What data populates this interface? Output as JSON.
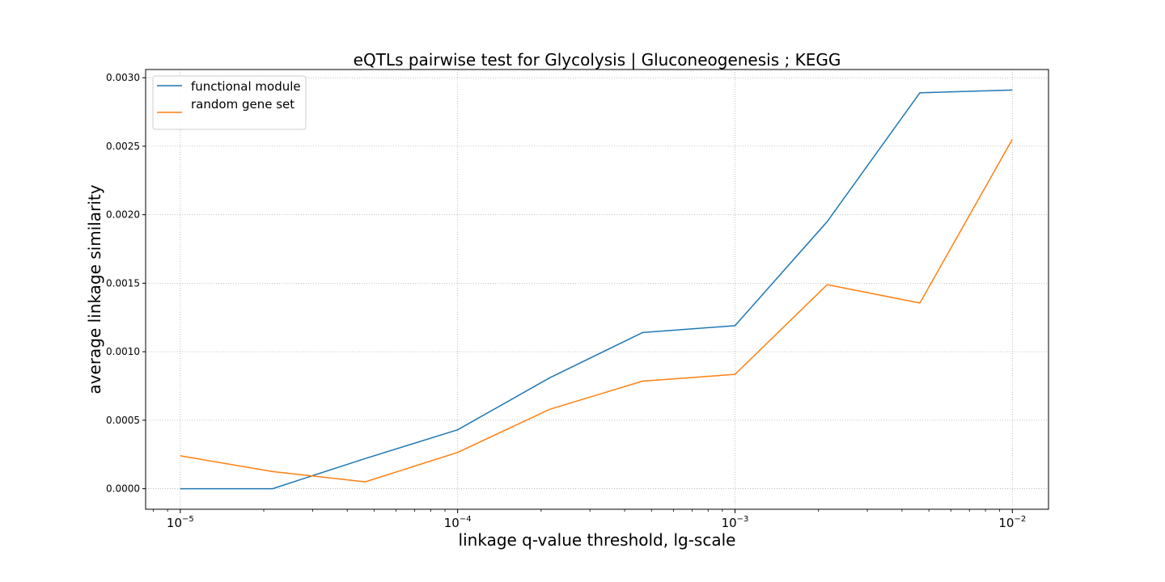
{
  "chart_data": {
    "type": "line",
    "title": "eQTLs pairwise test for Glycolysis | Gluconeogenesis ; KEGG",
    "xlabel": "linkage q-value threshold, lg-scale",
    "ylabel": "average linkage similarity",
    "x_scale": "log",
    "xlim": [
      7.5e-06,
      0.0135
    ],
    "ylim": [
      -0.00015,
      0.00306
    ],
    "x_ticks": [
      {
        "value": 1e-05,
        "base": "10",
        "exp": "−5"
      },
      {
        "value": 0.0001,
        "base": "10",
        "exp": "−4"
      },
      {
        "value": 0.001,
        "base": "10",
        "exp": "−3"
      },
      {
        "value": 0.01,
        "base": "10",
        "exp": "−2"
      }
    ],
    "y_ticks": [
      {
        "value": 0.0,
        "label": "0.0000"
      },
      {
        "value": 0.0005,
        "label": "0.0005"
      },
      {
        "value": 0.001,
        "label": "0.0010"
      },
      {
        "value": 0.0015,
        "label": "0.0015"
      },
      {
        "value": 0.002,
        "label": "0.0020"
      },
      {
        "value": 0.0025,
        "label": "0.0025"
      },
      {
        "value": 0.003,
        "label": "0.0030"
      }
    ],
    "grid": true,
    "legend_position": "upper-left",
    "x": [
      1e-05,
      2.15e-05,
      4.64e-05,
      0.0001,
      0.000215,
      0.000464,
      0.001,
      0.00215,
      0.00464,
      0.01
    ],
    "series": [
      {
        "name": "functional module",
        "color": "#1f77b4",
        "values": [
          0.0,
          0.0,
          0.00022,
          0.00043,
          0.00081,
          0.00114,
          0.00119,
          0.00195,
          0.00289,
          0.00291
        ]
      },
      {
        "name": "random gene set",
        "color": "#ff7f0e",
        "values": [
          0.00024,
          0.000125,
          5e-05,
          0.000265,
          0.00058,
          0.000785,
          0.000835,
          0.00149,
          0.001355,
          0.00255
        ]
      }
    ]
  }
}
